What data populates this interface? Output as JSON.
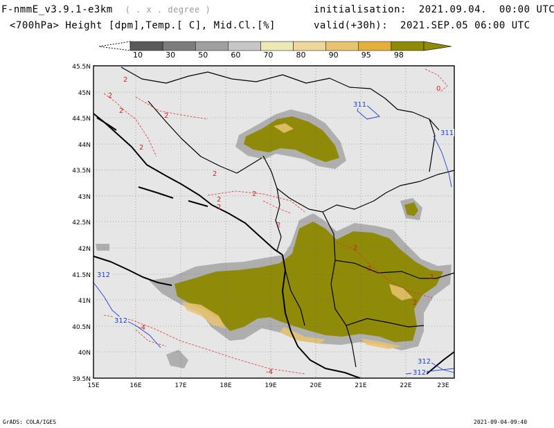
{
  "header": {
    "model": "F-nmmE_v3.9.1-e3km",
    "model_unit": "( . x . degree )",
    "fields": "<700hPa> Height [dpm],Temp.[ C], Mid.Cl.[%]",
    "init_label": "initialisation:",
    "init_value": "2021.09.04.  00:00 UTC",
    "valid_label": "valid(+30h):",
    "valid_value": "2021.SEP.05 06:00 UTC"
  },
  "colorbar": {
    "levels": [
      "10",
      "30",
      "50",
      "60",
      "70",
      "80",
      "90",
      "95",
      "98"
    ],
    "colors": [
      "#5a5a5a",
      "#7c7c7c",
      "#a0a0a0",
      "#c6c6c6",
      "#ece9b4",
      "#eed79a",
      "#e9c470",
      "#e3b13a",
      "#8f8a08"
    ]
  },
  "map": {
    "lat_labels": [
      "45.5N",
      "45N",
      "44.5N",
      "44N",
      "43.5N",
      "43N",
      "42.5N",
      "42N",
      "41.5N",
      "41N",
      "40.5N",
      "40N",
      "39.5N"
    ],
    "lon_labels": [
      "15E",
      "16E",
      "17E",
      "18E",
      "19E",
      "20E",
      "21E",
      "22E",
      "23E"
    ],
    "height_contour_labels": [
      "311",
      "311",
      "312",
      "312",
      "312",
      "312"
    ],
    "temp_contour_labels": [
      "2",
      "2",
      "2",
      "2",
      "2",
      "2",
      "2",
      "2",
      "2",
      "2",
      "2",
      "2",
      "2",
      "2",
      "0",
      "-4",
      "-4"
    ]
  },
  "footer": {
    "credit": "GrADS: COLA/IGES",
    "timestamp": "2021-09-04-09:40"
  }
}
